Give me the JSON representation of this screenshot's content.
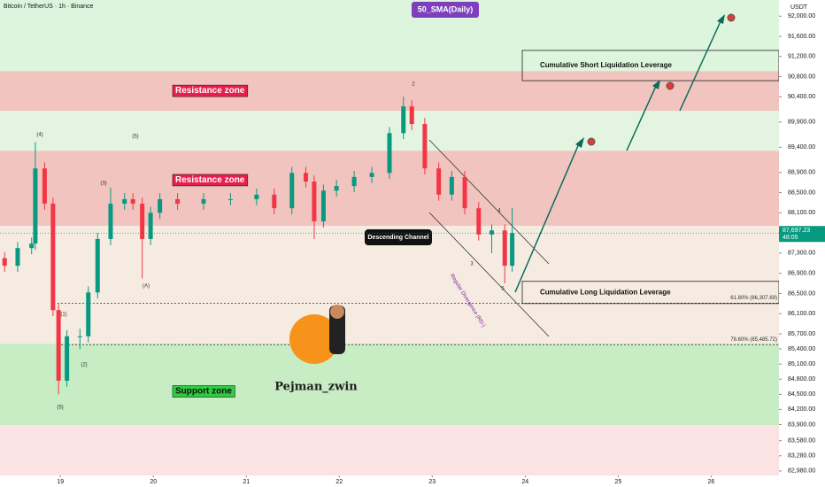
{
  "chart_data": {
    "type": "candlestick",
    "title": "Bitcoin / TetherUS · 1h · Binance",
    "indicator": "50_SMA(Daily)",
    "currency": "USDT",
    "x": [
      18.4,
      18.54,
      18.69,
      18.73,
      18.83,
      18.92,
      18.98,
      19.07,
      19.21,
      19.3,
      19.4,
      19.54,
      19.69,
      19.78,
      19.88,
      19.97,
      20.07,
      20.26,
      20.54,
      20.83,
      21.11,
      21.3,
      21.49,
      21.64,
      21.73,
      21.83,
      21.97,
      22.16,
      22.35,
      22.54,
      22.69,
      22.78,
      22.92,
      23.07,
      23.21,
      23.35,
      23.5,
      23.64,
      23.78,
      23.86
    ],
    "open": [
      87200,
      87050,
      87400,
      87490,
      88980,
      88280,
      86170,
      84770,
      85650,
      85650,
      86520,
      87580,
      88280,
      88370,
      88280,
      87580,
      88100,
      88370,
      88280,
      88370,
      88370,
      88460,
      88190,
      88890,
      88720,
      87930,
      88540,
      88630,
      88810,
      88890,
      89680,
      90210,
      89860,
      88980,
      88460,
      88810,
      88190,
      87670,
      87750,
      87050
    ],
    "high": [
      87320,
      87520,
      87610,
      89500,
      89100,
      88400,
      86290,
      85770,
      85800,
      86640,
      87700,
      88600,
      88490,
      88490,
      88400,
      88220,
      88490,
      88490,
      88490,
      88490,
      88580,
      88580,
      89010,
      89010,
      88840,
      88660,
      88750,
      88930,
      89010,
      89800,
      90400,
      90330,
      89980,
      89100,
      88930,
      88930,
      88310,
      87870,
      87870,
      88200
    ],
    "low": [
      86930,
      86930,
      87280,
      87370,
      88160,
      86050,
      84500,
      84650,
      85400,
      85530,
      86400,
      87460,
      88160,
      88160,
      86800,
      87460,
      87980,
      88160,
      88160,
      88250,
      88250,
      88070,
      88070,
      88600,
      87580,
      87810,
      88420,
      88510,
      88690,
      88770,
      89560,
      89740,
      88860,
      88340,
      88340,
      88070,
      87550,
      87300,
      86700,
      86930
    ],
    "close": [
      87050,
      87400,
      87490,
      88980,
      88280,
      86170,
      84770,
      85650,
      85650,
      86520,
      87580,
      88280,
      88370,
      88280,
      87580,
      88100,
      88370,
      88280,
      88370,
      88370,
      88460,
      88190,
      88890,
      88720,
      87930,
      88540,
      88630,
      88810,
      88890,
      89680,
      90210,
      89860,
      88980,
      88460,
      88810,
      88190,
      87670,
      87750,
      87050,
      87697.23
    ],
    "up_color": "#089981",
    "down_color": "#f23645",
    "xlim": [
      18.35,
      26.73
    ],
    "xticks": [
      19,
      20,
      21,
      22,
      23,
      24,
      25,
      26
    ],
    "ylim": [
      82890,
      92320
    ],
    "yticks": [
      {
        "value": 92000,
        "label": "92,000.00"
      },
      {
        "value": 91600,
        "label": "91,600.00"
      },
      {
        "value": 91200,
        "label": "91,200.00"
      },
      {
        "value": 90800,
        "label": "90,800.00"
      },
      {
        "value": 90400,
        "label": "90,400.00"
      },
      {
        "value": 89900,
        "label": "89,900.00"
      },
      {
        "value": 89400,
        "label": "89,400.00"
      },
      {
        "value": 88900,
        "label": "88,900.00"
      },
      {
        "value": 88500,
        "label": "88,500.00"
      },
      {
        "value": 88100,
        "label": "88,100.00"
      },
      {
        "value": 87300,
        "label": "87,300.00"
      },
      {
        "value": 86900,
        "label": "86,900.00"
      },
      {
        "value": 86500,
        "label": "86,500.00"
      },
      {
        "value": 86100,
        "label": "86,100.00"
      },
      {
        "value": 85700,
        "label": "85,700.00"
      },
      {
        "value": 85400,
        "label": "85,400.00"
      },
      {
        "value": 85100,
        "label": "85,100.00"
      },
      {
        "value": 84800,
        "label": "84,800.00"
      },
      {
        "value": 84500,
        "label": "84,500.00"
      },
      {
        "value": 84200,
        "label": "84,200.00"
      },
      {
        "value": 83900,
        "label": "83,900.00"
      },
      {
        "value": 83580,
        "label": "83,580.00"
      },
      {
        "value": 83280,
        "label": "83,280.00"
      },
      {
        "value": 82980,
        "label": "82,980.00"
      }
    ],
    "last_price": {
      "value": 87697.23,
      "label": "87,697.23",
      "timer": "48:05"
    },
    "bands": [
      {
        "range": [
          90910,
          92320
        ],
        "color": "#dcf5dc"
      },
      {
        "range": [
          90120,
          90910
        ],
        "color": "#f2c4bf"
      },
      {
        "range": [
          89330,
          90120
        ],
        "color": "#e3f5e0"
      },
      {
        "range": [
          87840,
          89330
        ],
        "color": "#f2c4bf"
      },
      {
        "range": [
          85500,
          87840
        ],
        "color": "#f5ebe1"
      },
      {
        "range": [
          83890,
          85500
        ],
        "color": "#c8ecc4"
      },
      {
        "range": [
          82890,
          83890
        ],
        "color": "#fbe3e3"
      }
    ],
    "zones": [
      {
        "label": "Resistance zone",
        "value": 90520,
        "color": "#e91e4d"
      },
      {
        "label": "Resistance zone",
        "value": 88750,
        "color": "#e91e4d"
      },
      {
        "label": "Support zone",
        "value": 84560,
        "color": "#2ecc40"
      }
    ],
    "levels": [
      {
        "label": "61.80% (86,307.69)",
        "value": 86307.69
      },
      {
        "label": "78.60% (85,485.72)",
        "value": 85485.72
      }
    ],
    "boxes": [
      {
        "label": "Cumulative Short Liquidation Leverage",
        "range": [
          90720,
          91320
        ]
      },
      {
        "label": "Cumulative Long Liquidation Leverage",
        "range": [
          86300,
          86740
        ]
      }
    ],
    "annotations": {
      "channel": "Descending Channel",
      "divergence": "Regular Divergence (RD-)",
      "author": "Pejman_zwin"
    },
    "waves": [
      "(4)",
      "(5)",
      "(3)",
      "(1)",
      "(2)",
      "(5)",
      "(A)",
      "2",
      "3",
      "4",
      "5"
    ]
  }
}
